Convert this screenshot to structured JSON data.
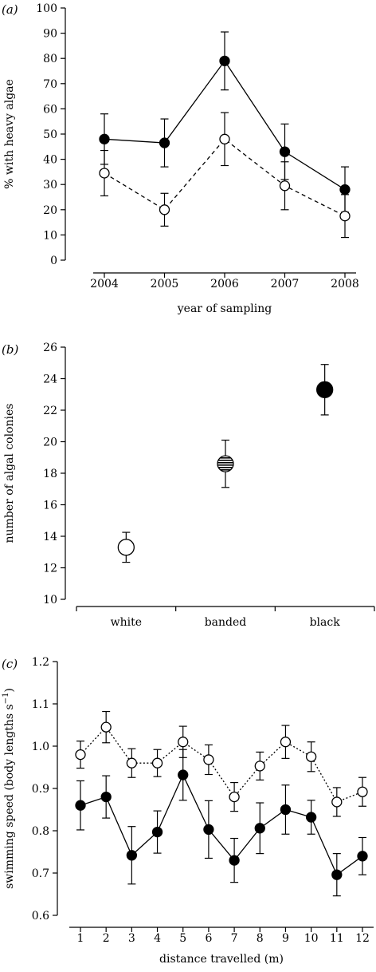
{
  "chart_data": [
    {
      "panel_label": "(a)",
      "type": "line",
      "xlabel": "year of sampling",
      "ylabel": "% with heavy algae",
      "categories": [
        "2004",
        "2005",
        "2006",
        "2007",
        "2008"
      ],
      "ylim": [
        0,
        100
      ],
      "yticks": [
        0,
        10,
        20,
        30,
        40,
        50,
        60,
        70,
        80,
        90,
        100
      ],
      "series": [
        {
          "marker": "filled-circle",
          "line": "solid",
          "values": [
            48,
            46.5,
            79,
            43,
            28
          ],
          "errors": [
            10,
            9.5,
            11.5,
            11,
            9
          ]
        },
        {
          "marker": "open-circle",
          "line": "dashed",
          "values": [
            34.5,
            20,
            48,
            29.5,
            17.5
          ],
          "errors": [
            9,
            6.5,
            10.5,
            9.5,
            8.5
          ]
        }
      ]
    },
    {
      "panel_label": "(b)",
      "type": "scatter",
      "xlabel": "",
      "ylabel": "number of algal colonies",
      "categories": [
        "white",
        "banded",
        "black"
      ],
      "ylim": [
        10,
        26
      ],
      "yticks": [
        10,
        12,
        14,
        16,
        18,
        20,
        22,
        24,
        26
      ],
      "series": [
        {
          "markers": [
            "open-circle",
            "striped-circle",
            "filled-circle"
          ],
          "values": [
            13.3,
            18.6,
            23.3
          ],
          "errors": [
            0.95,
            1.5,
            1.6
          ]
        }
      ]
    },
    {
      "panel_label": "(c)",
      "type": "line",
      "xlabel": "distance travelled (m)",
      "ylabel": "swimming speed (body lengths s",
      "ylabel_superscript": "−1",
      "ylabel_suffix": ")",
      "categories": [
        "1",
        "2",
        "3",
        "4",
        "5",
        "6",
        "7",
        "8",
        "9",
        "10",
        "11",
        "12"
      ],
      "ylim": [
        0.6,
        1.2
      ],
      "yticks": [
        "0.6",
        "0.7",
        "0.8",
        "0.9",
        "1.0",
        "1.1",
        "1.2"
      ],
      "series": [
        {
          "marker": "open-circle",
          "line": "dotted",
          "values": [
            0.98,
            1.045,
            0.96,
            0.96,
            1.01,
            0.968,
            0.88,
            0.953,
            1.01,
            0.975,
            0.868,
            0.892
          ],
          "errors": [
            0.032,
            0.037,
            0.034,
            0.032,
            0.037,
            0.035,
            0.034,
            0.033,
            0.039,
            0.035,
            0.034,
            0.034
          ]
        },
        {
          "marker": "filled-circle",
          "line": "solid",
          "values": [
            0.86,
            0.88,
            0.742,
            0.797,
            0.932,
            0.803,
            0.73,
            0.806,
            0.85,
            0.832,
            0.696,
            0.74
          ],
          "errors": [
            0.058,
            0.05,
            0.068,
            0.05,
            0.06,
            0.068,
            0.052,
            0.06,
            0.058,
            0.04,
            0.05,
            0.044
          ]
        }
      ]
    }
  ]
}
